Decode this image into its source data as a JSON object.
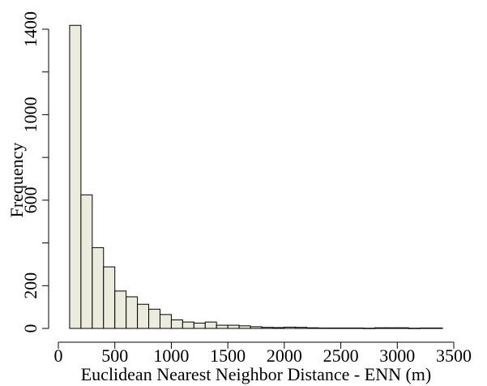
{
  "chart_data": {
    "type": "bar",
    "title": "",
    "xlabel": "Euclidean Nearest Neighbor Distance - ENN (m)",
    "ylabel": "Frequency",
    "xlim": [
      0,
      3500
    ],
    "ylim": [
      0,
      1450
    ],
    "x_ticks": [
      0,
      500,
      1000,
      1500,
      2000,
      2500,
      3000,
      3500
    ],
    "y_ticks": [
      0,
      200,
      600,
      1000,
      1400
    ],
    "bin_width": 100,
    "bins": [
      {
        "start": 100,
        "end": 200,
        "count": 1418
      },
      {
        "start": 200,
        "end": 300,
        "count": 625
      },
      {
        "start": 300,
        "end": 400,
        "count": 378
      },
      {
        "start": 400,
        "end": 500,
        "count": 288
      },
      {
        "start": 500,
        "end": 600,
        "count": 175
      },
      {
        "start": 600,
        "end": 700,
        "count": 148
      },
      {
        "start": 700,
        "end": 800,
        "count": 113
      },
      {
        "start": 800,
        "end": 900,
        "count": 90
      },
      {
        "start": 900,
        "end": 1000,
        "count": 65
      },
      {
        "start": 1000,
        "end": 1100,
        "count": 40
      },
      {
        "start": 1100,
        "end": 1200,
        "count": 30
      },
      {
        "start": 1200,
        "end": 1300,
        "count": 25
      },
      {
        "start": 1300,
        "end": 1400,
        "count": 30
      },
      {
        "start": 1400,
        "end": 1500,
        "count": 15
      },
      {
        "start": 1500,
        "end": 1600,
        "count": 15
      },
      {
        "start": 1600,
        "end": 1700,
        "count": 12
      },
      {
        "start": 1700,
        "end": 1800,
        "count": 8
      },
      {
        "start": 1800,
        "end": 1900,
        "count": 5
      },
      {
        "start": 1900,
        "end": 2000,
        "count": 4
      },
      {
        "start": 2000,
        "end": 2100,
        "count": 6
      },
      {
        "start": 2100,
        "end": 2200,
        "count": 5
      },
      {
        "start": 2200,
        "end": 2300,
        "count": 3
      },
      {
        "start": 2300,
        "end": 2400,
        "count": 2
      },
      {
        "start": 2400,
        "end": 2500,
        "count": 2
      },
      {
        "start": 2500,
        "end": 2600,
        "count": 2
      },
      {
        "start": 2600,
        "end": 2700,
        "count": 2
      },
      {
        "start": 2700,
        "end": 2800,
        "count": 1
      },
      {
        "start": 2800,
        "end": 2900,
        "count": 3
      },
      {
        "start": 2900,
        "end": 3000,
        "count": 3
      },
      {
        "start": 3000,
        "end": 3100,
        "count": 3
      },
      {
        "start": 3100,
        "end": 3200,
        "count": 1
      },
      {
        "start": 3200,
        "end": 3300,
        "count": 2
      },
      {
        "start": 3300,
        "end": 3400,
        "count": 2
      }
    ],
    "bar_fill": "#EBEBDE",
    "bar_stroke": "#000000",
    "grid": false,
    "legend": "none"
  }
}
